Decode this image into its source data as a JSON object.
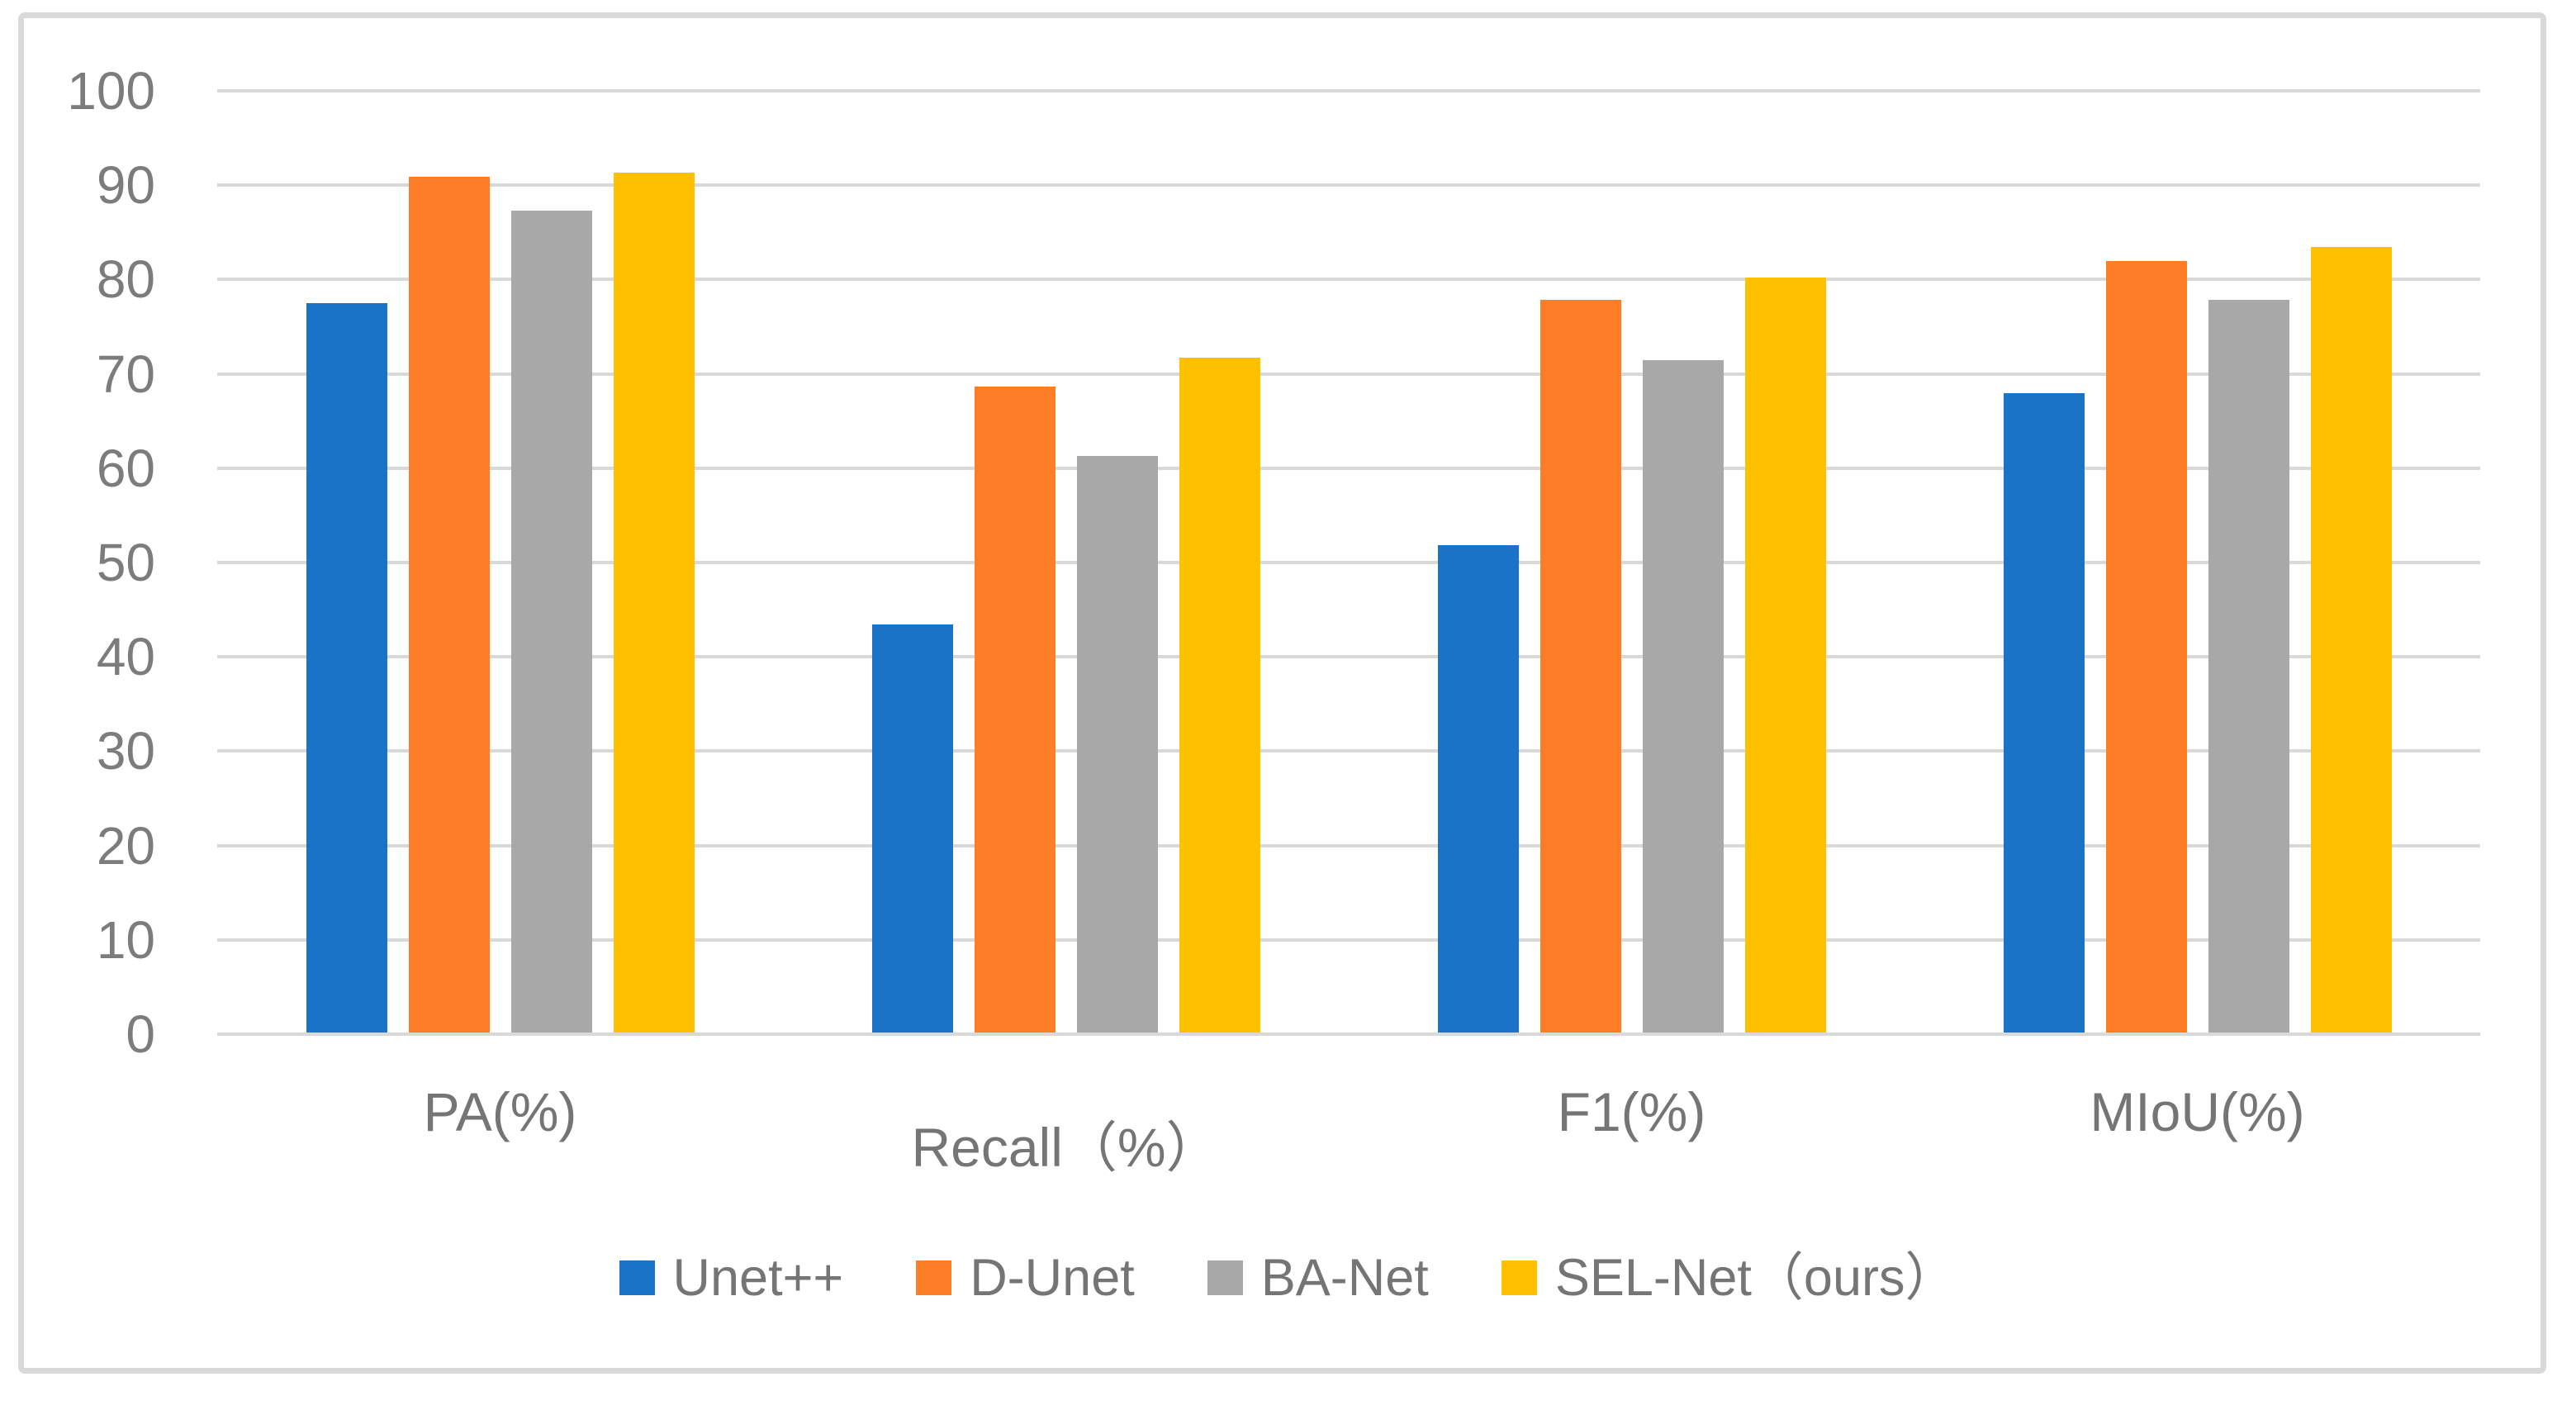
{
  "chart_data": {
    "type": "bar",
    "title": "",
    "xlabel": "",
    "ylabel": "",
    "categories": [
      "PA(%)",
      "Recall（%）",
      "F1(%)",
      "MIoU(%)"
    ],
    "series": [
      {
        "name": "Unet++",
        "color": "#1b73c8",
        "values": [
          77.3,
          43.3,
          51.7,
          67.8
        ]
      },
      {
        "name": "D-Unet",
        "color": "#fd7e27",
        "values": [
          90.7,
          68.5,
          77.7,
          81.8
        ]
      },
      {
        "name": "BA-Net",
        "color": "#a8a8a8",
        "values": [
          87.1,
          61.1,
          71.3,
          77.7
        ]
      },
      {
        "name": "SEL-Net（ours）",
        "color": "#ffc000",
        "values": [
          91.2,
          71.5,
          80.0,
          83.3
        ]
      }
    ],
    "ylim": [
      0,
      100
    ],
    "y_ticks": [
      0,
      10,
      20,
      30,
      40,
      50,
      60,
      70,
      80,
      90,
      100
    ],
    "grid": true,
    "legend_position": "bottom"
  },
  "styles": {
    "background": "#ffffff",
    "frame_border_color": "#d9d9d9",
    "gridline_color": "#d9d9d9",
    "axis_text_color": "#7c7c7c",
    "label_text_color": "#757575"
  }
}
